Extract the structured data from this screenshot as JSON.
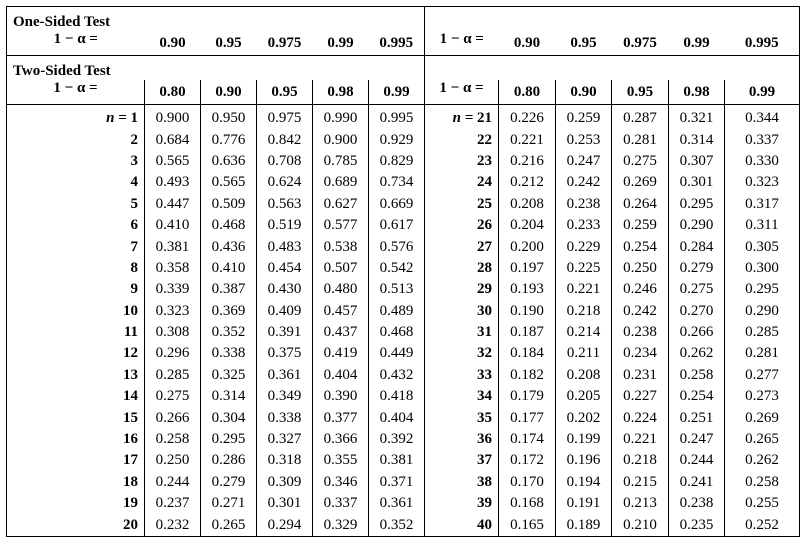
{
  "one_sided": {
    "label": "One-Sided Test",
    "alpha_label": "1 − α =",
    "levels_left": [
      "0.90",
      "0.95",
      "0.975",
      "0.99",
      "0.995"
    ],
    "levels_right": [
      "0.90",
      "0.95",
      "0.975",
      "0.99",
      "0.995"
    ]
  },
  "two_sided": {
    "label": "Two-Sided Test",
    "alpha_label": "1 − α =",
    "levels_left": [
      "0.80",
      "0.90",
      "0.95",
      "0.98",
      "0.99"
    ],
    "levels_right": [
      "0.80",
      "0.90",
      "0.95",
      "0.98",
      "0.99"
    ]
  },
  "n_prefix": "n = ",
  "left_rows": [
    {
      "n": "1",
      "v": [
        "0.900",
        "0.950",
        "0.975",
        "0.990",
        "0.995"
      ]
    },
    {
      "n": "2",
      "v": [
        "0.684",
        "0.776",
        "0.842",
        "0.900",
        "0.929"
      ]
    },
    {
      "n": "3",
      "v": [
        "0.565",
        "0.636",
        "0.708",
        "0.785",
        "0.829"
      ]
    },
    {
      "n": "4",
      "v": [
        "0.493",
        "0.565",
        "0.624",
        "0.689",
        "0.734"
      ]
    },
    {
      "n": "5",
      "v": [
        "0.447",
        "0.509",
        "0.563",
        "0.627",
        "0.669"
      ]
    },
    {
      "n": "6",
      "v": [
        "0.410",
        "0.468",
        "0.519",
        "0.577",
        "0.617"
      ]
    },
    {
      "n": "7",
      "v": [
        "0.381",
        "0.436",
        "0.483",
        "0.538",
        "0.576"
      ]
    },
    {
      "n": "8",
      "v": [
        "0.358",
        "0.410",
        "0.454",
        "0.507",
        "0.542"
      ]
    },
    {
      "n": "9",
      "v": [
        "0.339",
        "0.387",
        "0.430",
        "0.480",
        "0.513"
      ]
    },
    {
      "n": "10",
      "v": [
        "0.323",
        "0.369",
        "0.409",
        "0.457",
        "0.489"
      ]
    },
    {
      "n": "11",
      "v": [
        "0.308",
        "0.352",
        "0.391",
        "0.437",
        "0.468"
      ]
    },
    {
      "n": "12",
      "v": [
        "0.296",
        "0.338",
        "0.375",
        "0.419",
        "0.449"
      ]
    },
    {
      "n": "13",
      "v": [
        "0.285",
        "0.325",
        "0.361",
        "0.404",
        "0.432"
      ]
    },
    {
      "n": "14",
      "v": [
        "0.275",
        "0.314",
        "0.349",
        "0.390",
        "0.418"
      ]
    },
    {
      "n": "15",
      "v": [
        "0.266",
        "0.304",
        "0.338",
        "0.377",
        "0.404"
      ]
    },
    {
      "n": "16",
      "v": [
        "0.258",
        "0.295",
        "0.327",
        "0.366",
        "0.392"
      ]
    },
    {
      "n": "17",
      "v": [
        "0.250",
        "0.286",
        "0.318",
        "0.355",
        "0.381"
      ]
    },
    {
      "n": "18",
      "v": [
        "0.244",
        "0.279",
        "0.309",
        "0.346",
        "0.371"
      ]
    },
    {
      "n": "19",
      "v": [
        "0.237",
        "0.271",
        "0.301",
        "0.337",
        "0.361"
      ]
    },
    {
      "n": "20",
      "v": [
        "0.232",
        "0.265",
        "0.294",
        "0.329",
        "0.352"
      ]
    }
  ],
  "right_rows": [
    {
      "n": "21",
      "v": [
        "0.226",
        "0.259",
        "0.287",
        "0.321",
        "0.344"
      ]
    },
    {
      "n": "22",
      "v": [
        "0.221",
        "0.253",
        "0.281",
        "0.314",
        "0.337"
      ]
    },
    {
      "n": "23",
      "v": [
        "0.216",
        "0.247",
        "0.275",
        "0.307",
        "0.330"
      ]
    },
    {
      "n": "24",
      "v": [
        "0.212",
        "0.242",
        "0.269",
        "0.301",
        "0.323"
      ]
    },
    {
      "n": "25",
      "v": [
        "0.208",
        "0.238",
        "0.264",
        "0.295",
        "0.317"
      ]
    },
    {
      "n": "26",
      "v": [
        "0.204",
        "0.233",
        "0.259",
        "0.290",
        "0.311"
      ]
    },
    {
      "n": "27",
      "v": [
        "0.200",
        "0.229",
        "0.254",
        "0.284",
        "0.305"
      ]
    },
    {
      "n": "28",
      "v": [
        "0.197",
        "0.225",
        "0.250",
        "0.279",
        "0.300"
      ]
    },
    {
      "n": "29",
      "v": [
        "0.193",
        "0.221",
        "0.246",
        "0.275",
        "0.295"
      ]
    },
    {
      "n": "30",
      "v": [
        "0.190",
        "0.218",
        "0.242",
        "0.270",
        "0.290"
      ]
    },
    {
      "n": "31",
      "v": [
        "0.187",
        "0.214",
        "0.238",
        "0.266",
        "0.285"
      ]
    },
    {
      "n": "32",
      "v": [
        "0.184",
        "0.211",
        "0.234",
        "0.262",
        "0.281"
      ]
    },
    {
      "n": "33",
      "v": [
        "0.182",
        "0.208",
        "0.231",
        "0.258",
        "0.277"
      ]
    },
    {
      "n": "34",
      "v": [
        "0.179",
        "0.205",
        "0.227",
        "0.254",
        "0.273"
      ]
    },
    {
      "n": "35",
      "v": [
        "0.177",
        "0.202",
        "0.224",
        "0.251",
        "0.269"
      ]
    },
    {
      "n": "36",
      "v": [
        "0.174",
        "0.199",
        "0.221",
        "0.247",
        "0.265"
      ]
    },
    {
      "n": "37",
      "v": [
        "0.172",
        "0.196",
        "0.218",
        "0.244",
        "0.262"
      ]
    },
    {
      "n": "38",
      "v": [
        "0.170",
        "0.194",
        "0.215",
        "0.241",
        "0.258"
      ]
    },
    {
      "n": "39",
      "v": [
        "0.168",
        "0.191",
        "0.213",
        "0.238",
        "0.255"
      ]
    },
    {
      "n": "40",
      "v": [
        "0.165",
        "0.189",
        "0.210",
        "0.235",
        "0.252"
      ]
    }
  ]
}
